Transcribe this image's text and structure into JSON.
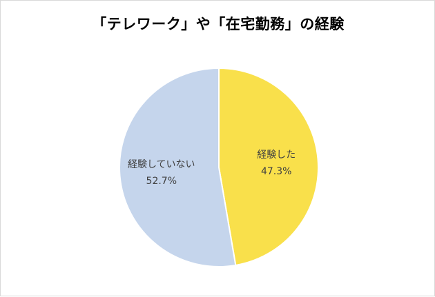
{
  "chart_data": {
    "type": "pie",
    "title": "「テレワーク」や「在宅勤務」の経験",
    "slices": [
      {
        "label": "経験した",
        "value": 47.3,
        "display": "47.3%",
        "color": "#f9e04b"
      },
      {
        "label": "経験していない",
        "value": 52.7,
        "display": "52.7%",
        "color": "#c5d5ec"
      }
    ],
    "start": "12 o'clock",
    "direction": "clockwise",
    "legend": "none",
    "slice_border_color": "#ffffff"
  }
}
